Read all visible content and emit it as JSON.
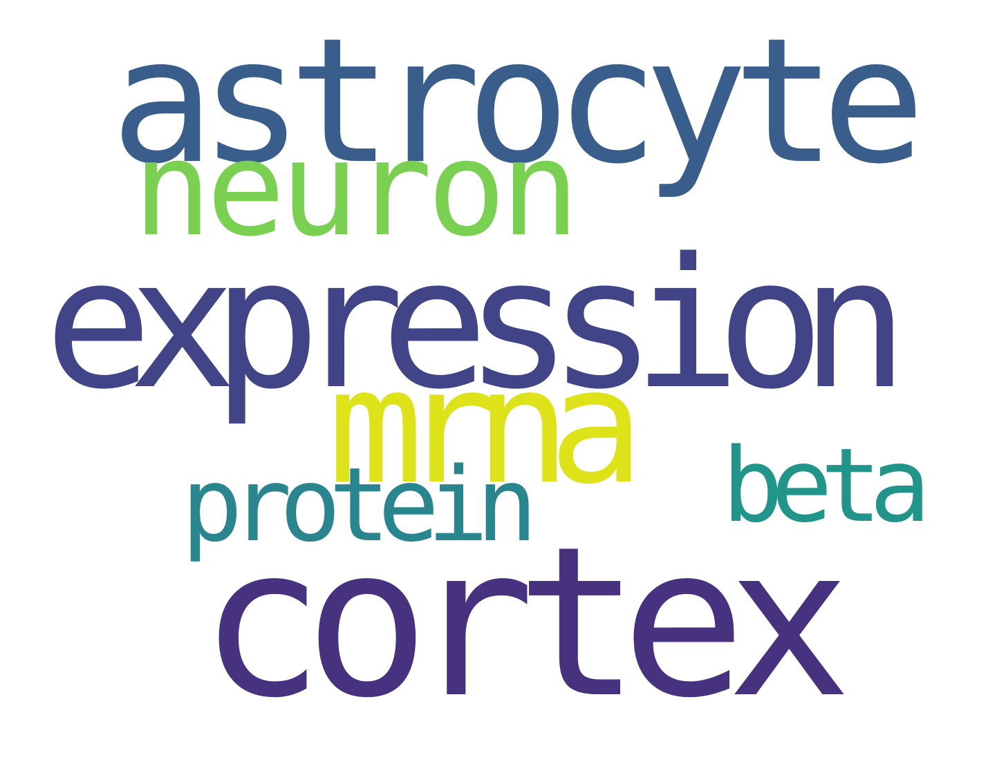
{
  "words": [
    {
      "text": "astrocyte",
      "color": "#3a5e8c"
    },
    {
      "text": "neuron",
      "color": "#7ad151"
    },
    {
      "text": "expression",
      "color": "#414487"
    },
    {
      "text": "mrna",
      "color": "#dde318"
    },
    {
      "text": "protein",
      "color": "#29858e"
    },
    {
      "text": "beta",
      "color": "#22958b"
    },
    {
      "text": "cortex",
      "color": "#46327e"
    }
  ]
}
